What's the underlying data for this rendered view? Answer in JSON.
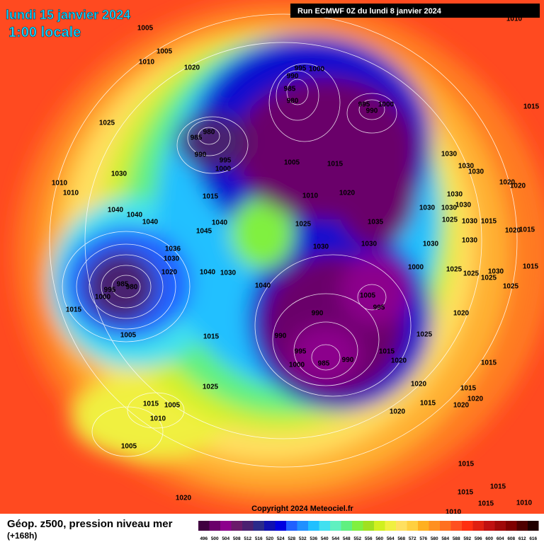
{
  "header": {
    "date": "lundi 15 janvier 2024",
    "time": "1:00 locale",
    "run": "Run ECMWF 0Z du lundi 8 janvier 2024"
  },
  "map": {
    "isobar_labels": [
      1005,
      1005,
      1010,
      1020,
      1025,
      995,
      1000,
      990,
      985,
      980,
      995,
      1000,
      990,
      980,
      985,
      990,
      995,
      1000,
      1005,
      1015,
      1030,
      1010,
      1010,
      1015,
      1010,
      1020,
      1040,
      1040,
      1040,
      1040,
      1025,
      1035,
      1045,
      1036,
      1030,
      1030,
      1030,
      1020,
      1040,
      1030,
      1000,
      985,
      980,
      995,
      1000,
      1040,
      1005,
      995,
      1015,
      990,
      990,
      995,
      990,
      985,
      1000,
      1005,
      1015,
      1025,
      1015,
      1020,
      1025,
      1015,
      1005,
      1010,
      1005,
      1020,
      1020,
      1020,
      1015,
      1015,
      1020,
      1020,
      1015,
      1020,
      1025,
      1030,
      1025,
      1015,
      1030,
      1030,
      1030,
      1020,
      1020,
      1030,
      1030,
      1030,
      1030,
      1015,
      1030,
      1025,
      1020,
      1030,
      1030,
      1015,
      1015,
      1025,
      1025,
      1015,
      1015,
      1015,
      1015,
      1010,
      1010,
      1010
    ]
  },
  "copyright": "Copyright 2024 Meteociel.fr",
  "footer": {
    "title": "Géop. z500, pression niveau mer",
    "subtitle": "(+168h)"
  },
  "legend": {
    "values": [
      496,
      500,
      504,
      508,
      512,
      516,
      520,
      524,
      528,
      532,
      536,
      540,
      544,
      548,
      552,
      556,
      560,
      564,
      568,
      572,
      576,
      580,
      584,
      588,
      592,
      596,
      600,
      604,
      608,
      612,
      616
    ],
    "colors": [
      "#400040",
      "#6a006a",
      "#8c008c",
      "#6a1a6a",
      "#4a2070",
      "#2a2a8a",
      "#1010b0",
      "#0000e0",
      "#2060ff",
      "#2090ff",
      "#20c0ff",
      "#40e0f0",
      "#60f0c0",
      "#60f080",
      "#80f040",
      "#a0e020",
      "#d0f020",
      "#f0f040",
      "#ffe060",
      "#ffd040",
      "#ffb020",
      "#ff9020",
      "#ff7020",
      "#ff5020",
      "#ff3010",
      "#e02010",
      "#c01010",
      "#a00808",
      "#800000",
      "#500000",
      "#200000"
    ]
  }
}
